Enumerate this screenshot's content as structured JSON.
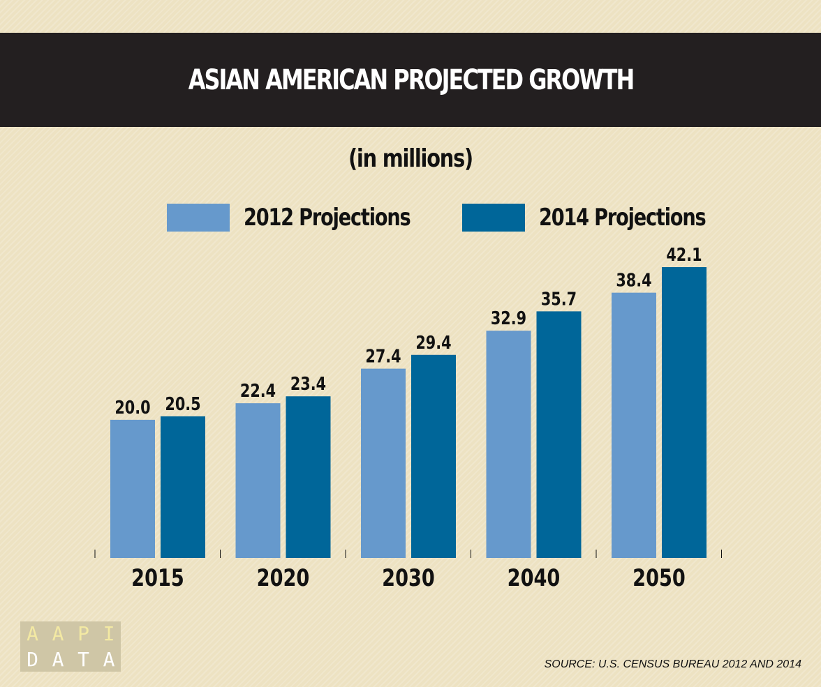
{
  "chart_data": {
    "type": "bar",
    "title": "ASIAN AMERICAN PROJECTED GROWTH",
    "subtitle": "(in millions)",
    "categories": [
      "2015",
      "2020",
      "2030",
      "2040",
      "2050"
    ],
    "series": [
      {
        "name": "2012 Projections",
        "values": [
          20.0,
          22.4,
          27.4,
          32.9,
          38.4
        ],
        "color": "#6699cc",
        "labels": [
          "20.0",
          "22.4",
          "27.4",
          "32.9",
          "38.4"
        ]
      },
      {
        "name": "2014 Projections",
        "values": [
          20.5,
          23.4,
          29.4,
          35.7,
          42.1
        ],
        "color": "#006699",
        "labels": [
          "20.5",
          "23.4",
          "29.4",
          "35.7",
          "42.1"
        ]
      }
    ],
    "ylim": [
      0,
      42.1
    ],
    "grid": false,
    "legend_position": "top"
  },
  "logo": {
    "letters": [
      "A",
      "A",
      "P",
      "I",
      "D",
      "A",
      "T",
      "A"
    ],
    "colors": [
      "#f3e9a3",
      "#f3e9a3",
      "#f3e9a3",
      "#f3e9a3",
      "#ffffff",
      "#ffffff",
      "#ffffff",
      "#ffffff"
    ]
  },
  "source": "SOURCE: U.S. CENSUS BUREAU 2012 AND 2014",
  "colors": {
    "background": "#ede2c2",
    "title_bar": "#231f20",
    "title_text": "#ffffff"
  }
}
